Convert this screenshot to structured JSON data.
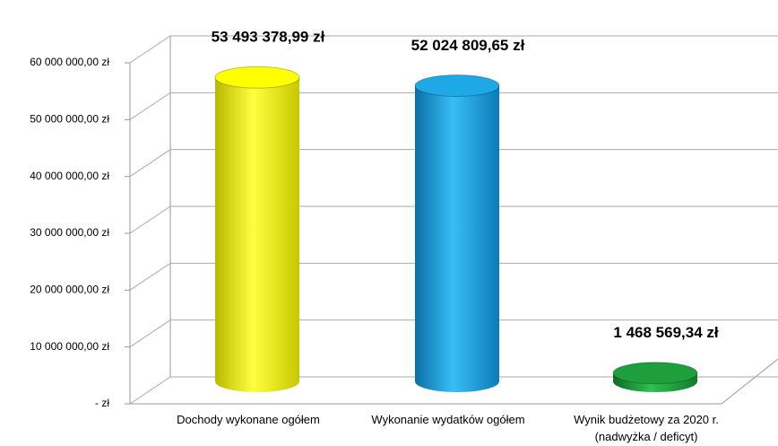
{
  "chart_data": {
    "type": "bar",
    "categories": [
      "Dochody wykonane ogółem",
      "Wykonanie wydatków ogółem",
      "Wynik budżetowy za 2020 r. (nadwyżka / deficyt)"
    ],
    "values": [
      53493378.99,
      52024809.65,
      1468569.34
    ],
    "value_labels": [
      "53 493 378,99 zł",
      "52 024 809,65 zł",
      "1 468 569,34 zł"
    ],
    "colors": [
      "#ffff00",
      "#1ea8e6",
      "#1e9e3c"
    ],
    "ylim": [
      0,
      60000000
    ],
    "yticks": [
      {
        "value": 0,
        "label": "-  zł"
      },
      {
        "value": 10000000,
        "label": "10 000 000,00 zł"
      },
      {
        "value": 20000000,
        "label": "20 000 000,00 zł"
      },
      {
        "value": 30000000,
        "label": "30 000 000,00 zł"
      },
      {
        "value": 40000000,
        "label": "40 000 000,00 zł"
      },
      {
        "value": 50000000,
        "label": "50 000 000,00 zł"
      },
      {
        "value": 60000000,
        "label": "60 000 000,00 zł"
      }
    ],
    "grid": true
  }
}
